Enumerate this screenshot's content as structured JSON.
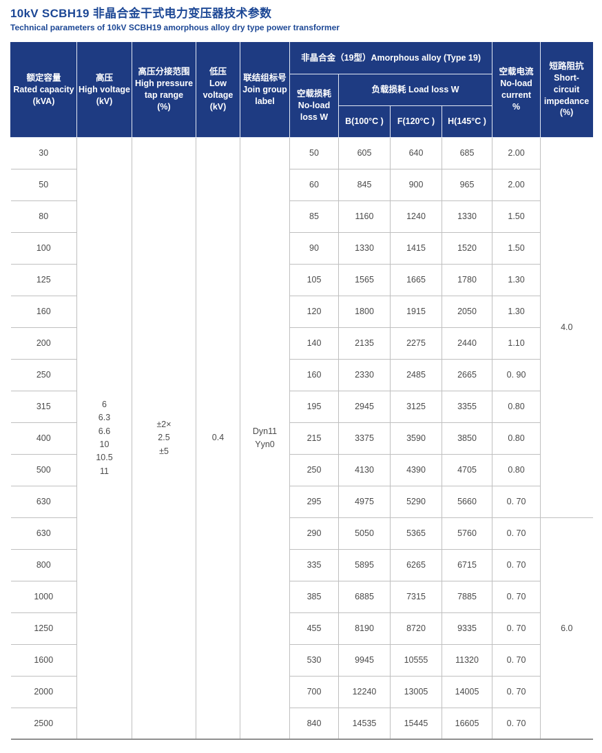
{
  "page": {
    "title": "10kV  SCBH19  非晶合金干式电力变压器技术参数",
    "subtitle": "Technical parameters of 10kV SCBH19 amorphous alloy dry type power transformer"
  },
  "colors": {
    "header_background": "#1e3b82",
    "title_text": "#1c4795",
    "body_text": "#4a4a4a",
    "grid_line": "#bfbfbf",
    "table_bottom_line": "#8f8f8f",
    "header_separator": "#e4e9f4"
  },
  "table": {
    "header": {
      "rated_capacity": "额定容量\nRated capacity\n(kVA)",
      "high_voltage": "高压\nHigh voltage\n(kV)",
      "tap_range": "高压分接范围\nHigh pressure\ntap range\n(%)",
      "low_voltage": "低压\nLow\nvoltage\n(kV)",
      "join_group": "联结组标号\nJoin group\nlabel",
      "amorphous_alloy": "非晶合金（19型）Amorphous alloy (Type 19)",
      "no_load_loss": "空载损耗\nNo-load\nloss W",
      "load_loss": "负载损耗 Load loss W",
      "b_col": "B(100°C )",
      "f_col": "F(120°C )",
      "h_col": "H(145°C )",
      "no_load_current": "空载电流\nNo-load\ncurrent\n%",
      "short_circuit": "短路阻抗\nShort-\ncircuit\nimpedance\n(%)"
    },
    "merged": {
      "high_voltage": "6\n6.3\n6.6\n10\n10.5\n11",
      "tap_range": "±2×\n2.5\n±5",
      "low_voltage": "0.4",
      "join_group": "Dyn11\nYyn0"
    },
    "impedance_groups": [
      {
        "value": "4.0",
        "rows": 12
      },
      {
        "value": "6.0",
        "rows": 7
      }
    ],
    "rows": [
      {
        "capacity": "30",
        "no_load_loss": "50",
        "b": "605",
        "f": "640",
        "h": "685",
        "current": "2.00"
      },
      {
        "capacity": "50",
        "no_load_loss": "60",
        "b": "845",
        "f": "900",
        "h": "965",
        "current": "2.00"
      },
      {
        "capacity": "80",
        "no_load_loss": "85",
        "b": "1160",
        "f": "1240",
        "h": "1330",
        "current": "1.50"
      },
      {
        "capacity": "100",
        "no_load_loss": "90",
        "b": "1330",
        "f": "1415",
        "h": "1520",
        "current": "1.50"
      },
      {
        "capacity": "125",
        "no_load_loss": "105",
        "b": "1565",
        "f": "1665",
        "h": "1780",
        "current": "1.30"
      },
      {
        "capacity": "160",
        "no_load_loss": "120",
        "b": "1800",
        "f": "1915",
        "h": "2050",
        "current": "1.30"
      },
      {
        "capacity": "200",
        "no_load_loss": "140",
        "b": "2135",
        "f": "2275",
        "h": "2440",
        "current": "1.10"
      },
      {
        "capacity": "250",
        "no_load_loss": "160",
        "b": "2330",
        "f": "2485",
        "h": "2665",
        "current": "0. 90"
      },
      {
        "capacity": "315",
        "no_load_loss": "195",
        "b": "2945",
        "f": "3125",
        "h": "3355",
        "current": "0.80"
      },
      {
        "capacity": "400",
        "no_load_loss": "215",
        "b": "3375",
        "f": "3590",
        "h": "3850",
        "current": "0.80"
      },
      {
        "capacity": "500",
        "no_load_loss": "250",
        "b": "4130",
        "f": "4390",
        "h": "4705",
        "current": "0.80"
      },
      {
        "capacity": "630",
        "no_load_loss": "295",
        "b": "4975",
        "f": "5290",
        "h": "5660",
        "current": "0. 70"
      },
      {
        "capacity": "630",
        "no_load_loss": "290",
        "b": "5050",
        "f": "5365",
        "h": "5760",
        "current": "0. 70"
      },
      {
        "capacity": "800",
        "no_load_loss": "335",
        "b": "5895",
        "f": "6265",
        "h": "6715",
        "current": "0. 70"
      },
      {
        "capacity": "1000",
        "no_load_loss": "385",
        "b": "6885",
        "f": "7315",
        "h": "7885",
        "current": "0. 70"
      },
      {
        "capacity": "1250",
        "no_load_loss": "455",
        "b": "8190",
        "f": "8720",
        "h": "9335",
        "current": "0. 70"
      },
      {
        "capacity": "1600",
        "no_load_loss": "530",
        "b": "9945",
        "f": "10555",
        "h": "11320",
        "current": "0. 70"
      },
      {
        "capacity": "2000",
        "no_load_loss": "700",
        "b": "12240",
        "f": "13005",
        "h": "14005",
        "current": "0. 70"
      },
      {
        "capacity": "2500",
        "no_load_loss": "840",
        "b": "14535",
        "f": "15445",
        "h": "16605",
        "current": "0. 70"
      }
    ]
  }
}
